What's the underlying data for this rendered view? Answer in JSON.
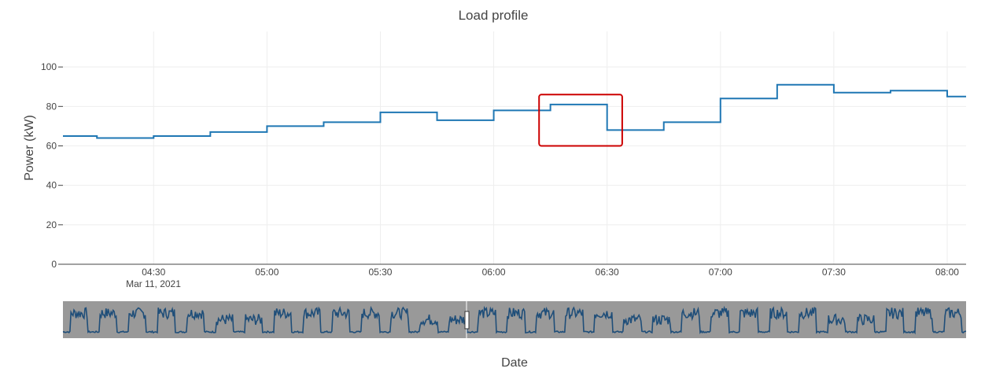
{
  "chart_data": {
    "type": "line",
    "line_shape": "step",
    "title": "Load profile",
    "xlabel": "Date",
    "ylabel": "Power (kW)",
    "date": "Mar 11, 2021",
    "x_range": [
      "2021-03-11 04:06",
      "2021-03-11 08:05"
    ],
    "ylim": [
      0,
      118
    ],
    "y_ticks": [
      0,
      20,
      40,
      60,
      80,
      100
    ],
    "x_ticks": [
      {
        "t": "2021-03-11 04:30",
        "label": "04:30"
      },
      {
        "t": "2021-03-11 05:00",
        "label": "05:00"
      },
      {
        "t": "2021-03-11 05:30",
        "label": "05:30"
      },
      {
        "t": "2021-03-11 06:00",
        "label": "06:00"
      },
      {
        "t": "2021-03-11 06:30",
        "label": "06:30"
      },
      {
        "t": "2021-03-11 07:00",
        "label": "07:00"
      },
      {
        "t": "2021-03-11 07:30",
        "label": "07:30"
      },
      {
        "t": "2021-03-11 08:00",
        "label": "08:00"
      }
    ],
    "grid": true,
    "series": [
      {
        "color": "#1f77b4",
        "x": [
          "2021-03-11 04:06",
          "2021-03-11 04:15",
          "2021-03-11 04:30",
          "2021-03-11 04:45",
          "2021-03-11 05:00",
          "2021-03-11 05:15",
          "2021-03-11 05:30",
          "2021-03-11 05:45",
          "2021-03-11 06:00",
          "2021-03-11 06:15",
          "2021-03-11 06:30",
          "2021-03-11 06:45",
          "2021-03-11 07:00",
          "2021-03-11 07:15",
          "2021-03-11 07:30",
          "2021-03-11 07:45",
          "2021-03-11 08:00"
        ],
        "y": [
          65,
          64,
          65,
          67,
          70,
          72,
          77,
          73,
          78,
          81,
          68,
          72,
          84,
          91,
          87,
          88,
          85
        ]
      }
    ],
    "highlight": {
      "x_range": [
        "2021-03-11 06:12",
        "2021-03-11 06:34"
      ],
      "y_range": [
        60,
        86
      ],
      "color": "#cc0000"
    },
    "rangeslider": {
      "visible": true,
      "background": "#999999",
      "line_color": "#1f4e79"
    }
  }
}
